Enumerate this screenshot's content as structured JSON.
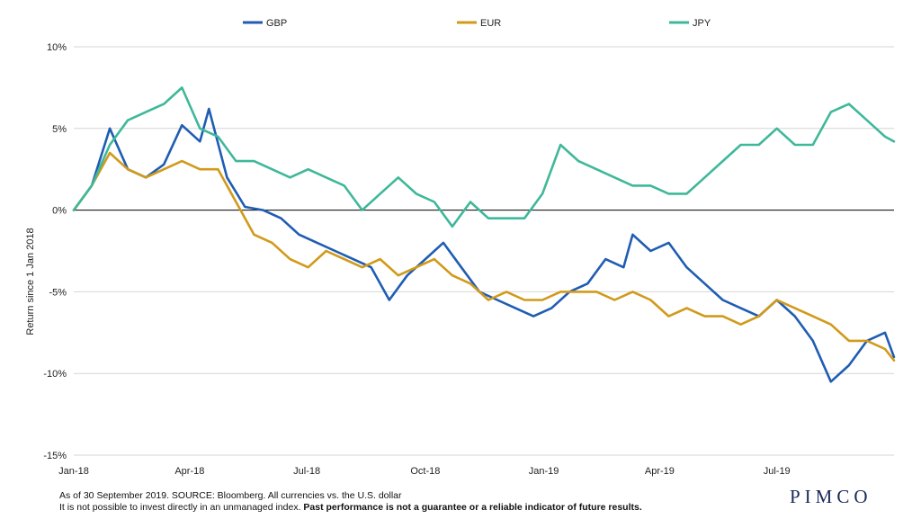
{
  "chart_data": {
    "type": "line",
    "ylabel": "Return since 1 Jan 2018",
    "ylim": [
      -15,
      10
    ],
    "yticks": [
      10,
      5,
      0,
      -5,
      -10,
      -15
    ],
    "ytick_labels": [
      "10%",
      "5%",
      "0%",
      "-5%",
      "-10%",
      "-15%"
    ],
    "xticks": [
      "Jan-18",
      "Apr-18",
      "Jul-18",
      "Oct-18",
      "Jan-19",
      "Apr-19",
      "Jul-19"
    ],
    "x_range": [
      "2018-01-01",
      "2019-09-30"
    ],
    "grid": "horizontal",
    "legend_position": "top",
    "series": [
      {
        "name": "GBP",
        "color": "#1f5db3",
        "points": [
          [
            "2018-01-01",
            0.0
          ],
          [
            "2018-01-15",
            1.5
          ],
          [
            "2018-01-29",
            5.0
          ],
          [
            "2018-02-12",
            2.5
          ],
          [
            "2018-02-26",
            2.0
          ],
          [
            "2018-03-12",
            2.8
          ],
          [
            "2018-03-26",
            5.2
          ],
          [
            "2018-04-09",
            4.2
          ],
          [
            "2018-04-16",
            6.2
          ],
          [
            "2018-04-30",
            2.0
          ],
          [
            "2018-05-14",
            0.2
          ],
          [
            "2018-05-28",
            0.0
          ],
          [
            "2018-06-11",
            -0.5
          ],
          [
            "2018-06-25",
            -1.5
          ],
          [
            "2018-07-09",
            -2.0
          ],
          [
            "2018-07-23",
            -2.5
          ],
          [
            "2018-08-06",
            -3.0
          ],
          [
            "2018-08-20",
            -3.5
          ],
          [
            "2018-09-03",
            -5.5
          ],
          [
            "2018-09-17",
            -4.0
          ],
          [
            "2018-10-01",
            -3.0
          ],
          [
            "2018-10-15",
            -2.0
          ],
          [
            "2018-10-29",
            -3.5
          ],
          [
            "2018-11-12",
            -5.0
          ],
          [
            "2018-11-26",
            -5.5
          ],
          [
            "2018-12-10",
            -6.0
          ],
          [
            "2018-12-24",
            -6.5
          ],
          [
            "2019-01-07",
            -6.0
          ],
          [
            "2019-01-21",
            -5.0
          ],
          [
            "2019-02-04",
            -4.5
          ],
          [
            "2019-02-18",
            -3.0
          ],
          [
            "2019-03-04",
            -3.5
          ],
          [
            "2019-03-11",
            -1.5
          ],
          [
            "2019-03-25",
            -2.5
          ],
          [
            "2019-04-08",
            -2.0
          ],
          [
            "2019-04-22",
            -3.5
          ],
          [
            "2019-05-06",
            -4.5
          ],
          [
            "2019-05-20",
            -5.5
          ],
          [
            "2019-06-03",
            -6.0
          ],
          [
            "2019-06-17",
            -6.5
          ],
          [
            "2019-07-01",
            -5.5
          ],
          [
            "2019-07-15",
            -6.5
          ],
          [
            "2019-07-29",
            -8.0
          ],
          [
            "2019-08-12",
            -10.5
          ],
          [
            "2019-08-26",
            -9.5
          ],
          [
            "2019-09-09",
            -8.0
          ],
          [
            "2019-09-23",
            -7.5
          ],
          [
            "2019-09-30",
            -9.0
          ]
        ]
      },
      {
        "name": "EUR",
        "color": "#d19a1a",
        "points": [
          [
            "2018-01-01",
            0.0
          ],
          [
            "2018-01-15",
            1.5
          ],
          [
            "2018-01-29",
            3.5
          ],
          [
            "2018-02-12",
            2.5
          ],
          [
            "2018-02-26",
            2.0
          ],
          [
            "2018-03-12",
            2.5
          ],
          [
            "2018-03-26",
            3.0
          ],
          [
            "2018-04-09",
            2.5
          ],
          [
            "2018-04-23",
            2.5
          ],
          [
            "2018-05-07",
            0.5
          ],
          [
            "2018-05-21",
            -1.5
          ],
          [
            "2018-06-04",
            -2.0
          ],
          [
            "2018-06-18",
            -3.0
          ],
          [
            "2018-07-02",
            -3.5
          ],
          [
            "2018-07-16",
            -2.5
          ],
          [
            "2018-07-30",
            -3.0
          ],
          [
            "2018-08-13",
            -3.5
          ],
          [
            "2018-08-27",
            -3.0
          ],
          [
            "2018-09-10",
            -4.0
          ],
          [
            "2018-09-24",
            -3.5
          ],
          [
            "2018-10-08",
            -3.0
          ],
          [
            "2018-10-22",
            -4.0
          ],
          [
            "2018-11-05",
            -4.5
          ],
          [
            "2018-11-19",
            -5.5
          ],
          [
            "2018-12-03",
            -5.0
          ],
          [
            "2018-12-17",
            -5.5
          ],
          [
            "2018-12-31",
            -5.5
          ],
          [
            "2019-01-14",
            -5.0
          ],
          [
            "2019-01-28",
            -5.0
          ],
          [
            "2019-02-11",
            -5.0
          ],
          [
            "2019-02-25",
            -5.5
          ],
          [
            "2019-03-11",
            -5.0
          ],
          [
            "2019-03-25",
            -5.5
          ],
          [
            "2019-04-08",
            -6.5
          ],
          [
            "2019-04-22",
            -6.0
          ],
          [
            "2019-05-06",
            -6.5
          ],
          [
            "2019-05-20",
            -6.5
          ],
          [
            "2019-06-03",
            -7.0
          ],
          [
            "2019-06-17",
            -6.5
          ],
          [
            "2019-07-01",
            -5.5
          ],
          [
            "2019-07-15",
            -6.0
          ],
          [
            "2019-07-29",
            -6.5
          ],
          [
            "2019-08-12",
            -7.0
          ],
          [
            "2019-08-26",
            -8.0
          ],
          [
            "2019-09-09",
            -8.0
          ],
          [
            "2019-09-23",
            -8.5
          ],
          [
            "2019-09-30",
            -9.2
          ]
        ]
      },
      {
        "name": "JPY",
        "color": "#3fb89a",
        "points": [
          [
            "2018-01-01",
            0.0
          ],
          [
            "2018-01-15",
            1.5
          ],
          [
            "2018-01-29",
            4.0
          ],
          [
            "2018-02-12",
            5.5
          ],
          [
            "2018-02-26",
            6.0
          ],
          [
            "2018-03-12",
            6.5
          ],
          [
            "2018-03-26",
            7.5
          ],
          [
            "2018-04-09",
            5.0
          ],
          [
            "2018-04-23",
            4.5
          ],
          [
            "2018-05-07",
            3.0
          ],
          [
            "2018-05-21",
            3.0
          ],
          [
            "2018-06-04",
            2.5
          ],
          [
            "2018-06-18",
            2.0
          ],
          [
            "2018-07-02",
            2.5
          ],
          [
            "2018-07-16",
            2.0
          ],
          [
            "2018-07-30",
            1.5
          ],
          [
            "2018-08-13",
            0.0
          ],
          [
            "2018-08-27",
            1.0
          ],
          [
            "2018-09-10",
            2.0
          ],
          [
            "2018-09-24",
            1.0
          ],
          [
            "2018-10-08",
            0.5
          ],
          [
            "2018-10-22",
            -1.0
          ],
          [
            "2018-11-05",
            0.5
          ],
          [
            "2018-11-19",
            -0.5
          ],
          [
            "2018-12-03",
            -0.5
          ],
          [
            "2018-12-17",
            -0.5
          ],
          [
            "2018-12-31",
            1.0
          ],
          [
            "2019-01-14",
            4.0
          ],
          [
            "2019-01-28",
            3.0
          ],
          [
            "2019-02-11",
            2.5
          ],
          [
            "2019-02-25",
            2.0
          ],
          [
            "2019-03-11",
            1.5
          ],
          [
            "2019-03-25",
            1.5
          ],
          [
            "2019-04-08",
            1.0
          ],
          [
            "2019-04-22",
            1.0
          ],
          [
            "2019-05-06",
            2.0
          ],
          [
            "2019-05-20",
            3.0
          ],
          [
            "2019-06-03",
            4.0
          ],
          [
            "2019-06-17",
            4.0
          ],
          [
            "2019-07-01",
            5.0
          ],
          [
            "2019-07-15",
            4.0
          ],
          [
            "2019-07-29",
            4.0
          ],
          [
            "2019-08-12",
            6.0
          ],
          [
            "2019-08-26",
            6.5
          ],
          [
            "2019-09-09",
            5.5
          ],
          [
            "2019-09-23",
            4.5
          ],
          [
            "2019-09-30",
            4.2
          ]
        ]
      }
    ]
  },
  "footer": {
    "line1": "As of 30 September 2019. SOURCE: Bloomberg. All currencies vs. the U.S. dollar",
    "line2_regular": "It is not possible to invest directly in an unmanaged index. ",
    "line2_bold": "Past performance is not a guarantee or a reliable indicator of future results."
  },
  "logo": "PIMCO"
}
